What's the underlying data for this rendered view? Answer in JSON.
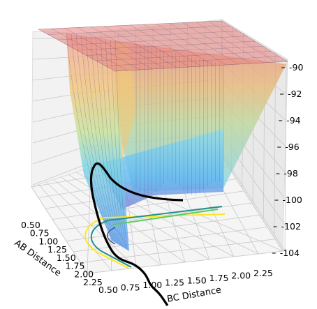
{
  "chart_data": {
    "type": "surface3d",
    "title": "",
    "xlabel": "AB Distance",
    "ylabel": "BC Distance",
    "zlabel": "",
    "x_ticks": [
      "0.50",
      "0.75",
      "1.00",
      "1.25",
      "1.50",
      "1.75",
      "2.00",
      "2.25"
    ],
    "y_ticks": [
      "0.50",
      "0.75",
      "1.00",
      "1.25",
      "1.50",
      "1.75",
      "2.00",
      "2.25"
    ],
    "z_ticks": [
      "-90",
      "-92",
      "-94",
      "-96",
      "-98",
      "-100",
      "-102",
      "-104"
    ],
    "xlim": [
      0.4,
      2.4
    ],
    "ylim": [
      0.4,
      2.4
    ],
    "zlim": [
      -104,
      -90
    ],
    "grid": true,
    "surface": {
      "colormap": "jet",
      "plateau_z": -90,
      "minimum_z": -104,
      "colors": [
        "#f4a5a5",
        "#e8c070",
        "#f0e68c",
        "#a8e08c",
        "#73d0e6",
        "#5aa8ff",
        "#7080d8"
      ]
    },
    "trajectory": {
      "color": "#000000",
      "points": [
        {
          "ab": 2.1,
          "bc": 0.74,
          "z": -98.6
        },
        {
          "ab": 1.7,
          "bc": 0.74,
          "z": -98.2
        },
        {
          "ab": 1.3,
          "bc": 0.75,
          "z": -97.8
        },
        {
          "ab": 1.0,
          "bc": 0.8,
          "z": -97.5
        },
        {
          "ab": 0.85,
          "bc": 0.95,
          "z": -98.2
        },
        {
          "ab": 0.78,
          "bc": 1.2,
          "z": -99.5
        },
        {
          "ab": 0.75,
          "bc": 1.6,
          "z": -101.0
        },
        {
          "ab": 0.74,
          "bc": 2.2,
          "z": -103.5
        }
      ]
    },
    "contour_colors": [
      "#fde725",
      "#21918c",
      "#5ec962",
      "#3b528b"
    ]
  }
}
